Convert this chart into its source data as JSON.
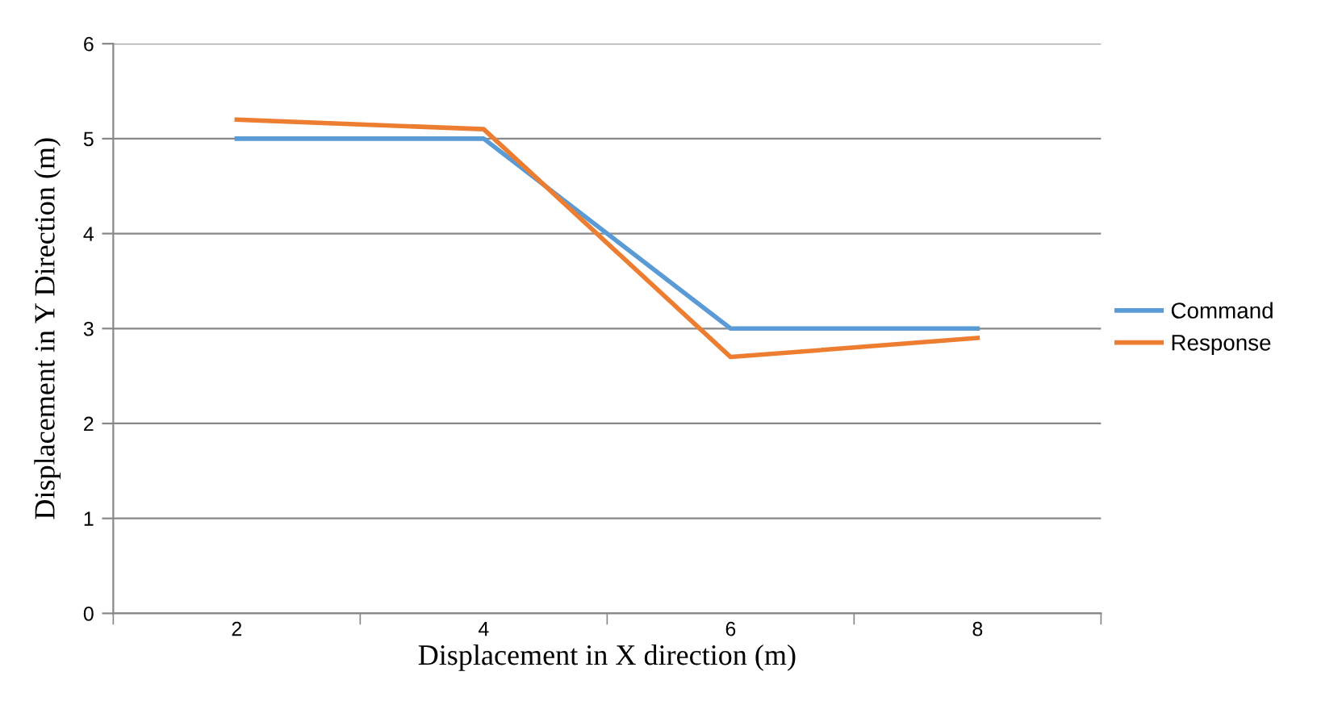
{
  "chart_data": {
    "type": "line",
    "xlabel": "Displacement in X direction (m)",
    "ylabel": "Displacement in Y Direction (m)",
    "categories": [
      "2",
      "4",
      "6",
      "8"
    ],
    "series": [
      {
        "name": "Command",
        "color": "#5b9bd5",
        "values": [
          5,
          5,
          3,
          3
        ]
      },
      {
        "name": "Response",
        "color": "#ed7d31",
        "values": [
          5.2,
          5.1,
          2.7,
          2.9
        ]
      }
    ],
    "ylim": [
      0,
      6
    ],
    "yticks": [
      0,
      1,
      2,
      3,
      4,
      5,
      6
    ],
    "grid": "y",
    "legend": "right",
    "marker": "none",
    "line_style": "solid"
  }
}
